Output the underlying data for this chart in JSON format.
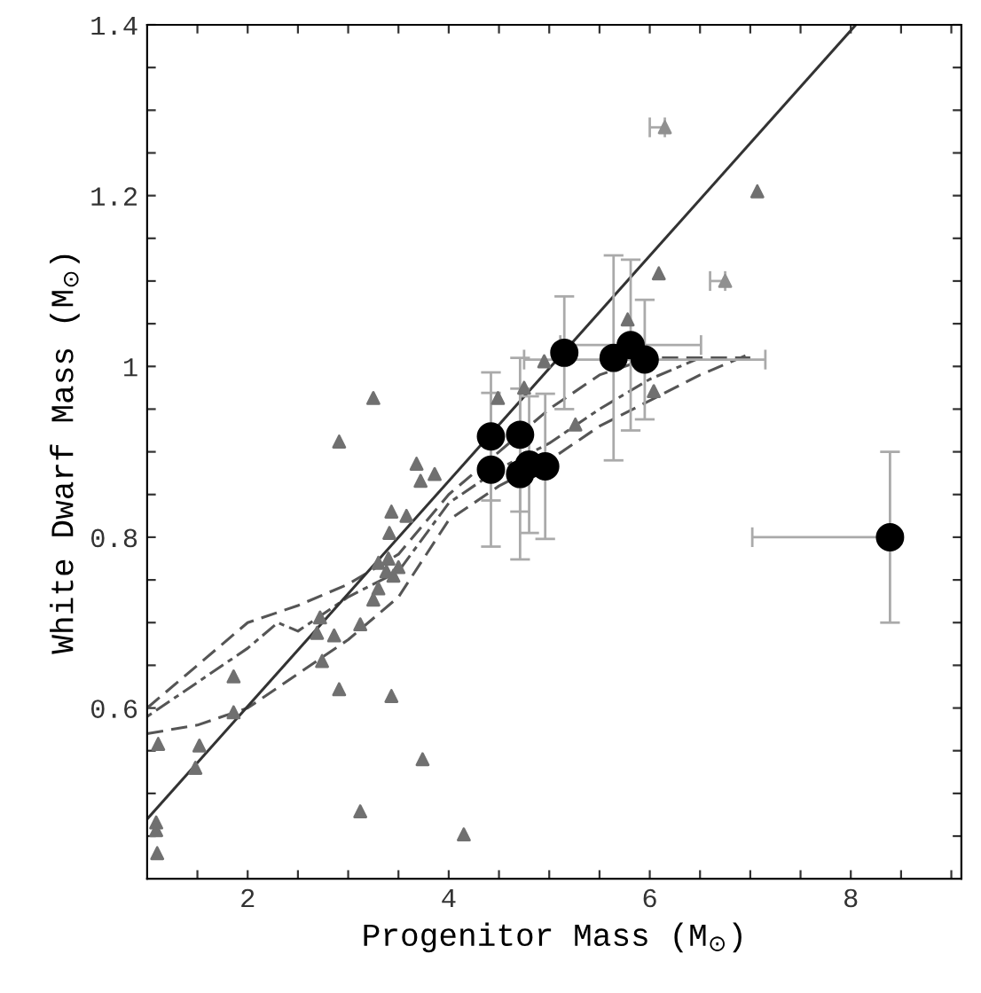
{
  "chart_data": {
    "type": "scatter",
    "xlabel": "Progenitor Mass (M$_{⊙}$)",
    "ylabel": "White Dwarf Mass (M$_{⊙}$)",
    "xlim": [
      1,
      9.1
    ],
    "ylim": [
      0.4,
      1.4
    ],
    "xticks": [
      {
        "value": 1.5,
        "label": null
      },
      2,
      {
        "value": 2.5,
        "label": null
      },
      {
        "value": 3,
        "label": null
      },
      {
        "value": 3.5,
        "label": null
      },
      4,
      {
        "value": 4.5,
        "label": null
      },
      {
        "value": 5,
        "label": null
      },
      {
        "value": 5.5,
        "label": null
      },
      6,
      {
        "value": 6.5,
        "label": null
      },
      {
        "value": 7,
        "label": null
      },
      {
        "value": 7.5,
        "label": null
      },
      8,
      {
        "value": 8.5,
        "label": null
      },
      {
        "value": 9,
        "label": null
      }
    ],
    "yticks": [
      {
        "value": 0.45,
        "label": null
      },
      {
        "value": 0.5,
        "label": null
      },
      {
        "value": 0.55,
        "label": null
      },
      0.6,
      {
        "value": 0.65,
        "label": null
      },
      {
        "value": 0.7,
        "label": null
      },
      {
        "value": 0.75,
        "label": null
      },
      0.8,
      {
        "value": 0.85,
        "label": null
      },
      {
        "value": 0.9,
        "label": null
      },
      {
        "value": 0.95,
        "label": null
      },
      {
        "value": 1.0,
        "label": "1"
      },
      {
        "value": 1.05,
        "label": null
      },
      {
        "value": 1.1,
        "label": null
      },
      {
        "value": 1.15,
        "label": null
      },
      1.2,
      {
        "value": 1.25,
        "label": null
      },
      {
        "value": 1.3,
        "label": null
      },
      {
        "value": 1.35,
        "label": null
      },
      1.4
    ],
    "grid": false,
    "legend": false,
    "series": [
      {
        "type": "line",
        "color": "#555555",
        "line_style": "dashed",
        "marker": "none",
        "x": [
          1.0,
          1.5,
          2.0,
          2.5,
          3.0,
          3.5,
          4.0,
          4.5,
          5.0,
          5.5,
          6.0,
          6.5,
          7.0
        ],
        "values": [
          0.57,
          0.58,
          0.6,
          0.64,
          0.68,
          0.73,
          0.82,
          0.86,
          0.89,
          0.93,
          0.96,
          0.99,
          1.015
        ]
      },
      {
        "type": "line",
        "color": "#555555",
        "line_style": "dotted",
        "marker": "none",
        "x": [
          1.0,
          1.5,
          2.0,
          2.3,
          2.5,
          3.0,
          3.5,
          4.0,
          4.5,
          5.0,
          5.5,
          6.0,
          6.5
        ],
        "values": [
          0.59,
          0.63,
          0.67,
          0.7,
          0.69,
          0.73,
          0.76,
          0.84,
          0.88,
          0.91,
          0.95,
          0.985,
          1.01
        ]
      },
      {
        "type": "line",
        "color": "#555555",
        "line_style": "dashed",
        "marker": "none",
        "x": [
          1.0,
          1.5,
          2.0,
          2.5,
          3.0,
          3.5,
          4.0,
          4.5,
          5.0,
          5.5,
          6.0,
          7.0
        ],
        "values": [
          0.6,
          0.65,
          0.7,
          0.72,
          0.745,
          0.78,
          0.85,
          0.9,
          0.95,
          0.99,
          1.01,
          1.01
        ]
      },
      {
        "type": "line",
        "color": "#333333",
        "line_style": "solid",
        "marker": "none",
        "x": [
          1.0,
          8.05
        ],
        "values": [
          0.47,
          1.4
        ]
      },
      {
        "color": "#707070",
        "marker": "triangle",
        "x": [
          3.25,
          2.91,
          3.68,
          3.86,
          3.72,
          3.43,
          3.58,
          3.41,
          3.3,
          3.4,
          3.5,
          3.45,
          3.38,
          3.25,
          3.3,
          2.72,
          2.69,
          2.86,
          3.12,
          2.74,
          1.86,
          2.91,
          3.43,
          1.86,
          1.11,
          1.52,
          1.48,
          3.74,
          3.12,
          4.15,
          1.09,
          1.09,
          1.1,
          6.09,
          5.78,
          4.95,
          4.75,
          4.49,
          5.26,
          6.04,
          7.07
        ],
        "values": [
          0.963,
          0.912,
          0.886,
          0.874,
          0.866,
          0.83,
          0.825,
          0.805,
          0.77,
          0.775,
          0.765,
          0.755,
          0.76,
          0.727,
          0.74,
          0.706,
          0.688,
          0.685,
          0.698,
          0.655,
          0.637,
          0.622,
          0.614,
          0.595,
          0.558,
          0.556,
          0.53,
          0.54,
          0.479,
          0.452,
          0.466,
          0.457,
          0.43,
          1.109,
          1.055,
          1.006,
          0.975,
          0.963,
          0.932,
          0.971,
          1.205
        ]
      },
      {
        "color": "#000000",
        "marker": "circle",
        "x": [
          4.42,
          4.42,
          4.71,
          4.71,
          4.8,
          4.96,
          5.15,
          5.64,
          5.81,
          5.95,
          8.39
        ],
        "values": [
          0.918,
          0.879,
          0.92,
          0.874,
          0.885,
          0.883,
          1.016,
          1.01,
          1.025,
          1.008,
          0.8
        ],
        "errors": [
          0.075,
          0.09,
          0.09,
          0.1,
          0.08,
          0.085,
          0.066,
          0.12,
          0.1,
          0.07,
          0.1
        ],
        "xerrors": [
          null,
          null,
          null,
          null,
          null,
          null,
          null,
          null,
          0.7,
          1.2,
          [
            7.02,
            8.39
          ]
        ]
      },
      {
        "color": "#909090",
        "marker": "triangle",
        "x": [
          6.15,
          6.75
        ],
        "values": [
          1.28,
          1.1
        ],
        "xerrors": [
          [
            6.0,
            6.15
          ],
          [
            6.6,
            6.75
          ]
        ]
      }
    ]
  }
}
